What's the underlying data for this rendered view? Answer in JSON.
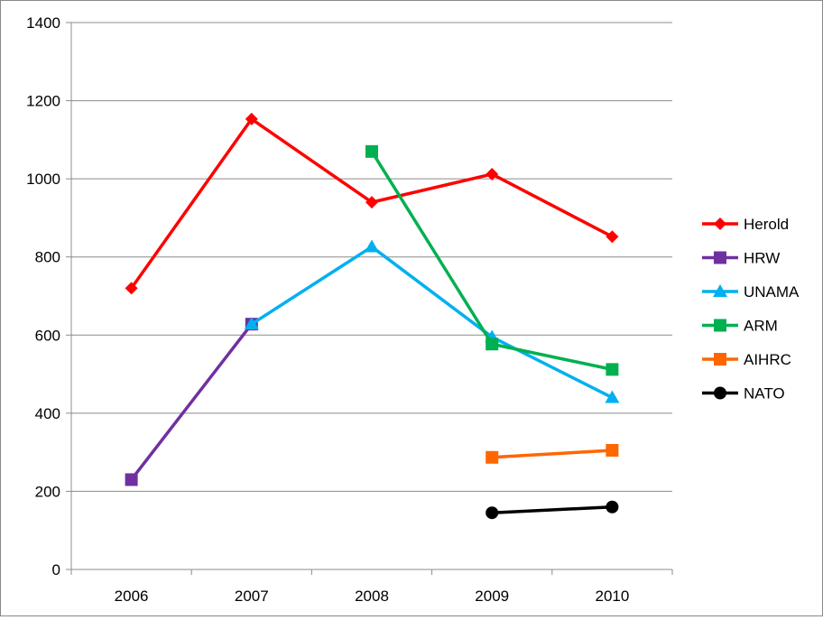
{
  "chart_data": {
    "type": "line",
    "title": "",
    "xlabel": "",
    "ylabel": "",
    "categories": [
      "2006",
      "2007",
      "2008",
      "2009",
      "2010"
    ],
    "ylim": [
      0,
      1400
    ],
    "yticks": [
      0,
      200,
      400,
      600,
      800,
      1000,
      1200,
      1400
    ],
    "grid": "horizontal",
    "legend": "right",
    "series": [
      {
        "name": "Herold",
        "color": "#ff0000",
        "marker": "diamond",
        "values": [
          720,
          1153,
          940,
          1012,
          852
        ]
      },
      {
        "name": "HRW",
        "color": "#7030a0",
        "marker": "square",
        "values": [
          230,
          628,
          null,
          null,
          null
        ]
      },
      {
        "name": "UNAMA",
        "color": "#00b0f0",
        "marker": "triangle",
        "values": [
          null,
          628,
          826,
          595,
          440
        ]
      },
      {
        "name": "ARM",
        "color": "#00b050",
        "marker": "square",
        "values": [
          null,
          null,
          1070,
          577,
          512
        ]
      },
      {
        "name": "AIHRC",
        "color": "#ff6600",
        "marker": "square",
        "values": [
          null,
          null,
          null,
          287,
          305
        ]
      },
      {
        "name": "NATO",
        "color": "#000000",
        "marker": "circle",
        "values": [
          null,
          null,
          null,
          145,
          160
        ]
      }
    ]
  }
}
